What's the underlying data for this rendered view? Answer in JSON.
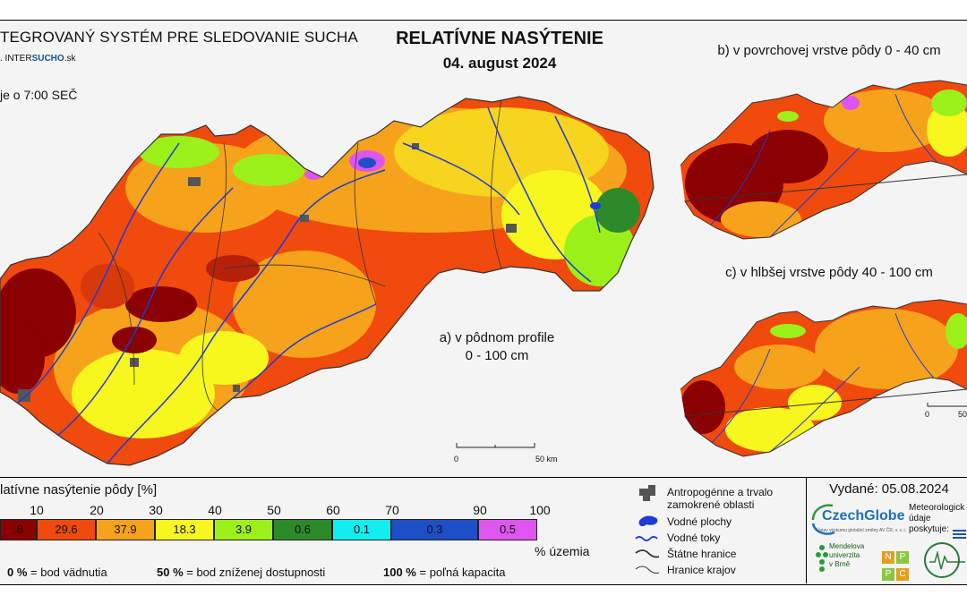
{
  "header": {
    "system_title": "TEGROVANÝ SYSTÉM PRE SLEDOVANIE SUCHA",
    "org_prefix": ". INTER",
    "org_highlight": "SUCHO",
    "org_suffix": ".sk",
    "time_note": "je o 7:00 SEČ",
    "main_title": "RELATÍVNE NASÝTENIE",
    "date": "04. august 2024"
  },
  "maps": {
    "main_label_line1": "a) v pôdnom profile",
    "main_label_line2": "0 - 100 cm",
    "top_label": "b) v povrchovej vrstve pôdy 0 - 40 cm",
    "bottom_label": "c) v hlbšej vrstve pôdy 40 - 100 cm",
    "scale_zero": "0",
    "scale_main_end": "50 km",
    "scale_small_end": "50"
  },
  "legend": {
    "title": "latívne nasýtenie pôdy [%]",
    "ticks": [
      "10",
      "20",
      "30",
      "40",
      "50",
      "60",
      "70",
      "90",
      "100"
    ],
    "classes": [
      {
        "color": "#8b0000",
        "pct": ".8"
      },
      {
        "color": "#f04a0c",
        "pct": "29.6"
      },
      {
        "color": "#f7a21b",
        "pct": "37.9"
      },
      {
        "color": "#f7f71e",
        "pct": "18.3"
      },
      {
        "color": "#9cf019",
        "pct": "3.9"
      },
      {
        "color": "#2d8a2a",
        "pct": "0.6"
      },
      {
        "color": "#12eef0",
        "pct": "0.1"
      },
      {
        "color": "#1f4fc7",
        "pct": "0.3"
      },
      {
        "color": "#de55f0",
        "pct": "0.5"
      }
    ],
    "pct_label": "% územia",
    "notes": [
      {
        "value": "0 %",
        "text": " = bod vädnutia"
      },
      {
        "value": "50 %",
        "text": " = bod zníženej dostupnosti"
      },
      {
        "value": "100 %",
        "text": " = poľná kapacita"
      }
    ]
  },
  "symbols": {
    "urban_line1": "Antropogénne a trvalo",
    "urban_line2": "zamokrené oblasti",
    "water_bodies": "Vodné plochy",
    "rivers": "Vodné toky",
    "state_border": "Štátne hranice",
    "region_border": "Hranice krajov"
  },
  "credits": {
    "issued": "Vydané: 05.08.2024",
    "czechglobe": "CzechGlobe",
    "czechglobe_sub": "Ústav výzkumu globální změny AV ČR, v. v. i.",
    "meteo_line1": "Meteorologick",
    "meteo_line2": "údaje",
    "meteo_line3": "poskytuje:",
    "mendel_line1": "Mendelova",
    "mendel_line2": "univerzita",
    "mendel_line3": "v Brně",
    "npc": [
      "N",
      "P",
      "P",
      "C"
    ]
  },
  "colors": {
    "dark_red": "#8b0000",
    "red_orange": "#f04a0c",
    "orange": "#f7a21b",
    "yellow": "#f7f71e",
    "light_green": "#9cf019",
    "green": "#2d8a2a",
    "cyan": "#12eef0",
    "blue": "#1f4fc7",
    "magenta": "#de55f0",
    "urban": "#555555",
    "river": "#1e3ad8"
  }
}
